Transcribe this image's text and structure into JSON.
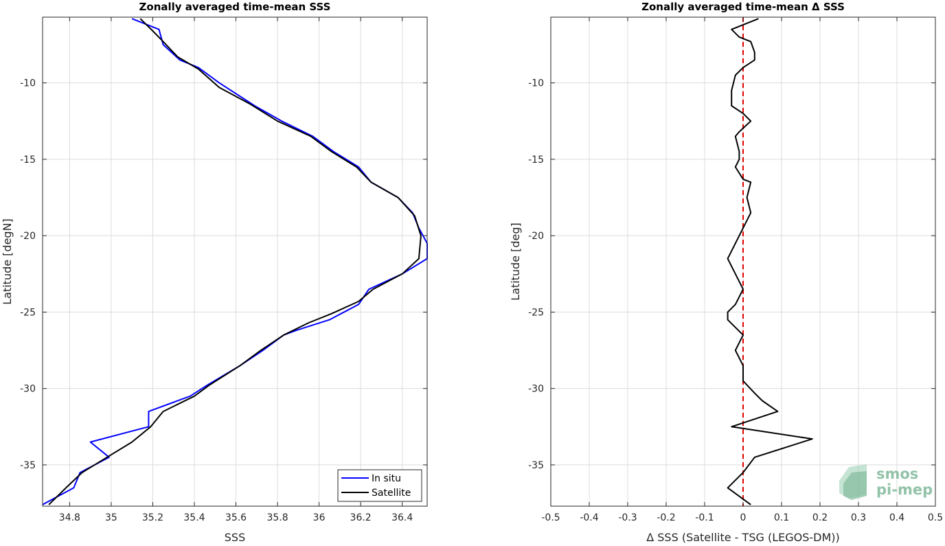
{
  "chart_data": [
    {
      "type": "line",
      "title": "Zonally averaged time-mean SSS",
      "xlabel": "SSS",
      "ylabel": "Latitude [degN]",
      "xlim": [
        34.67,
        36.52
      ],
      "ylim": [
        -37.7,
        -5.7
      ],
      "xticks": [
        34.8,
        35,
        35.2,
        35.4,
        35.6,
        35.8,
        36,
        36.2,
        36.4
      ],
      "xtick_labels": [
        "34.8",
        "35",
        "35.2",
        "35.4",
        "35.6",
        "35.8",
        "36",
        "36.2",
        "36.4"
      ],
      "yticks": [
        -10,
        -15,
        -20,
        -25,
        -30,
        -35
      ],
      "ytick_labels": [
        "-10",
        "-15",
        "-20",
        "-25",
        "-30",
        "-35"
      ],
      "grid": true,
      "legend": "bottom-right",
      "series": [
        {
          "name": "In situ",
          "color": "#0000ff",
          "points": [
            [
              35.1,
              -5.8
            ],
            [
              35.23,
              -6.5
            ],
            [
              35.25,
              -7.5
            ],
            [
              35.33,
              -8.5
            ],
            [
              35.42,
              -9.0
            ],
            [
              35.52,
              -10.0
            ],
            [
              35.69,
              -11.5
            ],
            [
              35.82,
              -12.5
            ],
            [
              35.97,
              -13.5
            ],
            [
              36.07,
              -14.5
            ],
            [
              36.19,
              -15.5
            ],
            [
              36.25,
              -16.5
            ],
            [
              36.38,
              -17.5
            ],
            [
              36.45,
              -18.5
            ],
            [
              36.48,
              -19.5
            ],
            [
              36.52,
              -20.5
            ],
            [
              36.52,
              -21.5
            ],
            [
              36.4,
              -22.5
            ],
            [
              36.24,
              -23.5
            ],
            [
              36.19,
              -24.5
            ],
            [
              36.05,
              -25.5
            ],
            [
              35.89,
              -26.2
            ],
            [
              35.83,
              -26.5
            ],
            [
              35.73,
              -27.5
            ],
            [
              35.62,
              -28.5
            ],
            [
              35.46,
              -29.8
            ],
            [
              35.38,
              -30.5
            ],
            [
              35.18,
              -31.5
            ],
            [
              35.18,
              -32.5
            ],
            [
              34.9,
              -33.5
            ],
            [
              34.99,
              -34.5
            ],
            [
              34.85,
              -35.5
            ],
            [
              34.82,
              -36.5
            ],
            [
              34.67,
              -37.6
            ]
          ]
        },
        {
          "name": "Satellite",
          "color": "#000000",
          "points": [
            [
              35.14,
              -5.8
            ],
            [
              35.2,
              -6.6
            ],
            [
              35.25,
              -7.3
            ],
            [
              35.32,
              -8.3
            ],
            [
              35.42,
              -9.1
            ],
            [
              35.52,
              -10.3
            ],
            [
              35.67,
              -11.4
            ],
            [
              35.8,
              -12.5
            ],
            [
              35.96,
              -13.5
            ],
            [
              36.06,
              -14.5
            ],
            [
              36.18,
              -15.5
            ],
            [
              36.25,
              -16.5
            ],
            [
              36.38,
              -17.5
            ],
            [
              36.46,
              -18.7
            ],
            [
              36.49,
              -20.0
            ],
            [
              36.48,
              -21.5
            ],
            [
              36.4,
              -22.5
            ],
            [
              36.26,
              -23.5
            ],
            [
              36.19,
              -24.3
            ],
            [
              36.06,
              -25.1
            ],
            [
              35.95,
              -25.7
            ],
            [
              35.83,
              -26.5
            ],
            [
              35.72,
              -27.5
            ],
            [
              35.62,
              -28.5
            ],
            [
              35.47,
              -29.8
            ],
            [
              35.4,
              -30.5
            ],
            [
              35.25,
              -31.5
            ],
            [
              35.19,
              -32.5
            ],
            [
              35.1,
              -33.5
            ],
            [
              34.98,
              -34.5
            ],
            [
              34.86,
              -35.5
            ],
            [
              34.79,
              -36.4
            ],
            [
              34.7,
              -37.6
            ]
          ]
        }
      ]
    },
    {
      "type": "line",
      "title": "Zonally averaged time-mean Δ SSS",
      "xlabel": "Δ SSS (Satellite - TSG (LEGOS-DM))",
      "ylabel": "Latitude [deg]",
      "xlim": [
        -0.5,
        0.5
      ],
      "ylim": [
        -37.7,
        -5.7
      ],
      "xticks": [
        -0.5,
        -0.4,
        -0.3,
        -0.2,
        -0.1,
        0,
        0.1,
        0.2,
        0.3,
        0.4,
        0.5
      ],
      "xtick_labels": [
        "-0.5",
        "-0.4",
        "-0.3",
        "-0.2",
        "-0.1",
        "0",
        "0.1",
        "0.2",
        "0.3",
        "0.4",
        "0.5"
      ],
      "yticks": [
        -10,
        -15,
        -20,
        -25,
        -30,
        -35
      ],
      "ytick_labels": [
        "-10",
        "-15",
        "-20",
        "-25",
        "-30",
        "-35"
      ],
      "grid": true,
      "reference_line": {
        "x": 0,
        "color": "#e00000",
        "style": "dashed"
      },
      "series": [
        {
          "name": "",
          "color": "#000000",
          "points": [
            [
              0.04,
              -5.8
            ],
            [
              -0.03,
              -6.5
            ],
            [
              -0.01,
              -7.0
            ],
            [
              0.02,
              -7.3
            ],
            [
              0.03,
              -8.0
            ],
            [
              0.03,
              -8.5
            ],
            [
              0.0,
              -9.0
            ],
            [
              -0.02,
              -9.5
            ],
            [
              -0.03,
              -10.5
            ],
            [
              -0.03,
              -11.5
            ],
            [
              0.0,
              -12.0
            ],
            [
              0.02,
              -12.5
            ],
            [
              -0.01,
              -13.2
            ],
            [
              -0.02,
              -13.5
            ],
            [
              -0.01,
              -14.5
            ],
            [
              -0.01,
              -15.0
            ],
            [
              -0.02,
              -15.5
            ],
            [
              0.0,
              -16.3
            ],
            [
              0.02,
              -16.5
            ],
            [
              0.01,
              -17.5
            ],
            [
              0.02,
              -18.5
            ],
            [
              0.0,
              -19.5
            ],
            [
              -0.02,
              -20.5
            ],
            [
              -0.04,
              -21.5
            ],
            [
              -0.02,
              -22.5
            ],
            [
              -0.01,
              -23.0
            ],
            [
              0.0,
              -23.5
            ],
            [
              -0.01,
              -24.0
            ],
            [
              -0.02,
              -24.5
            ],
            [
              -0.04,
              -25.0
            ],
            [
              -0.04,
              -25.5
            ],
            [
              -0.02,
              -26.0
            ],
            [
              0.0,
              -26.5
            ],
            [
              -0.02,
              -27.5
            ],
            [
              0.0,
              -28.5
            ],
            [
              0.0,
              -29.5
            ],
            [
              0.03,
              -30.3
            ],
            [
              0.05,
              -30.8
            ],
            [
              0.09,
              -31.5
            ],
            [
              -0.03,
              -32.5
            ],
            [
              0.18,
              -33.3
            ],
            [
              0.03,
              -34.5
            ],
            [
              0.0,
              -35.5
            ],
            [
              -0.04,
              -36.5
            ],
            [
              0.02,
              -37.6
            ]
          ]
        }
      ]
    }
  ],
  "legend": {
    "insitu_label": "In situ",
    "satellite_label": "Satellite"
  },
  "logo": {
    "line1": "smos",
    "line2": "pi-mep",
    "color": "#7fb89a"
  }
}
